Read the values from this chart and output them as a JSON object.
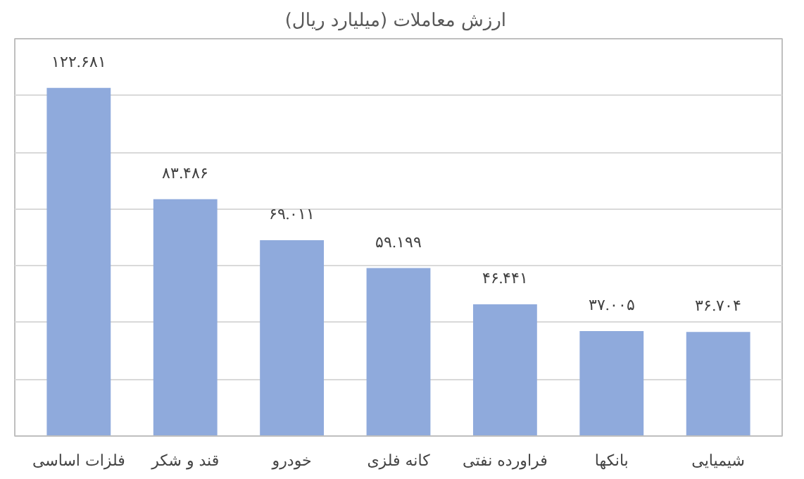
{
  "chart_data": {
    "type": "bar",
    "title": "ارزش معاملات  (میلیارد ریال)",
    "categories": [
      "فلزات اساسی",
      "قند و شکر",
      "خودرو",
      "کانه فلزی",
      "فراورده نفتی",
      "بانکها",
      "شیمیایی"
    ],
    "values": [
      122.681,
      83.486,
      69.011,
      59.199,
      46.441,
      37.005,
      36.704
    ],
    "value_labels": [
      "۱۲۲.۶۸۱",
      "۸۳.۴۸۶",
      "۶۹.۰۱۱",
      "۵۹.۱۹۹",
      "۴۶.۴۴۱",
      "۳۷.۰۰۵",
      "۳۶.۷۰۴"
    ],
    "color": "#8faadc",
    "ylim": [
      0,
      140
    ],
    "yticks": [
      {
        "value": 0,
        "label": null
      },
      {
        "value": 20,
        "label": null
      },
      {
        "value": 40,
        "label": null
      },
      {
        "value": 60,
        "label": null
      },
      {
        "value": 80,
        "label": null
      },
      {
        "value": 100,
        "label": null
      },
      {
        "value": 120,
        "label": null
      },
      {
        "value": 140,
        "label": null
      }
    ],
    "grid": "y",
    "tick_labels": "x"
  }
}
